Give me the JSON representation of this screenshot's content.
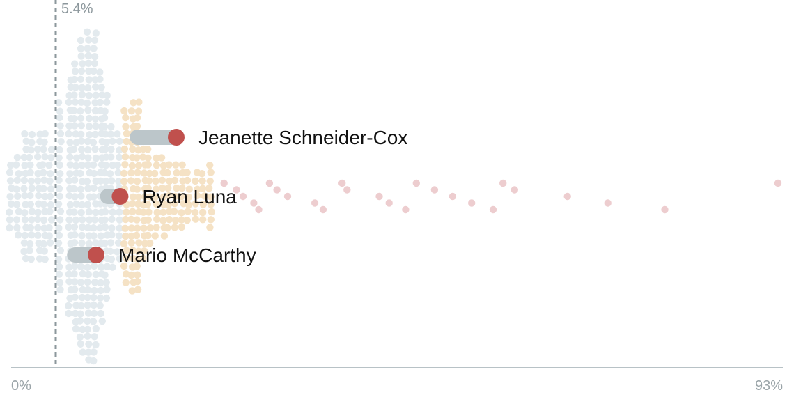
{
  "chart_data": {
    "type": "scatter",
    "xlim": [
      0,
      93
    ],
    "tick_labels": {
      "min": "0%",
      "max": "93%"
    },
    "reference_line": {
      "value": 5.4,
      "label": "5.4%"
    },
    "colors": {
      "low": "#e3eaee",
      "mid": "#f5e2c5",
      "high": "#edcdcf",
      "highlight": "#c0504d",
      "range_bar": "#bcc6ca",
      "axis": "#b8c2c6",
      "ref_line": "#8c979c"
    },
    "highlighted": [
      {
        "name": "Jeanette Schneider-Cox",
        "value": 20.0,
        "range_start": 15.3
      },
      {
        "name": "Ryan Luna",
        "value": 13.2,
        "range_start": 11.7
      },
      {
        "name": "Mario McCarthy",
        "value": 10.3,
        "range_start": 7.7
      }
    ],
    "outliers": [
      25.8,
      27.3,
      28.1,
      29.4,
      30.0,
      31.3,
      32.2,
      33.5,
      36.8,
      37.8,
      40.1,
      40.7,
      44.6,
      45.8,
      47.8,
      49.1,
      51.3,
      53.5,
      55.8,
      58.4,
      59.6,
      61.0,
      67.4,
      72.3,
      79.2,
      94.0
    ]
  }
}
